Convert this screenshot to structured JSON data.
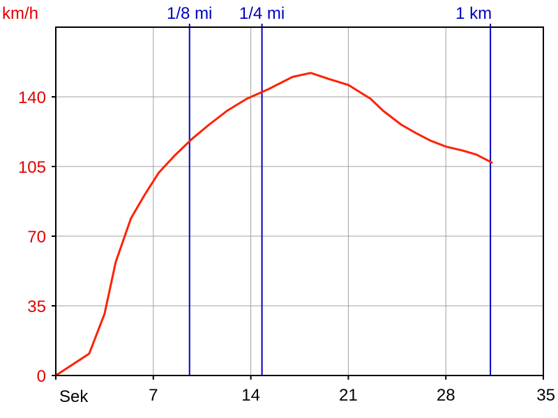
{
  "chart_data": {
    "type": "line",
    "title": "",
    "xlabel": "Sek",
    "ylabel": "km/h",
    "xlim": [
      0,
      35
    ],
    "ylim": [
      0,
      175
    ],
    "xticks": [
      7,
      14,
      21,
      28,
      35
    ],
    "yticks": [
      0,
      35,
      70,
      105,
      140
    ],
    "grid": true,
    "colors": {
      "series": "#ff2000",
      "markers": "#0000c0",
      "y_labels": "#e00000",
      "x_labels": "#000000",
      "grid": "#a0a0a0",
      "frame": "#000000"
    },
    "series": [
      {
        "x": [
          0,
          2.4,
          3.5,
          4.3,
          5.4,
          6.4,
          7.4,
          8.6,
          9.8,
          11,
          12.3,
          13.7,
          15.3,
          17,
          18.3,
          19.6,
          21,
          22.6,
          23.5,
          24.8,
          25.8,
          26.9,
          28,
          29.2,
          30.2,
          31.3
        ],
        "y": [
          0,
          11,
          31,
          57,
          79,
          91,
          102,
          111,
          119,
          126,
          133,
          139,
          144,
          150,
          152,
          149,
          146,
          139,
          133,
          126,
          122,
          118,
          115,
          113,
          111,
          107
        ]
      }
    ],
    "markers": [
      {
        "label": "1/8 mi",
        "x": 9.6
      },
      {
        "label": "1/4 mi",
        "x": 14.8
      },
      {
        "label": "1 km",
        "x": 31.2
      }
    ]
  }
}
